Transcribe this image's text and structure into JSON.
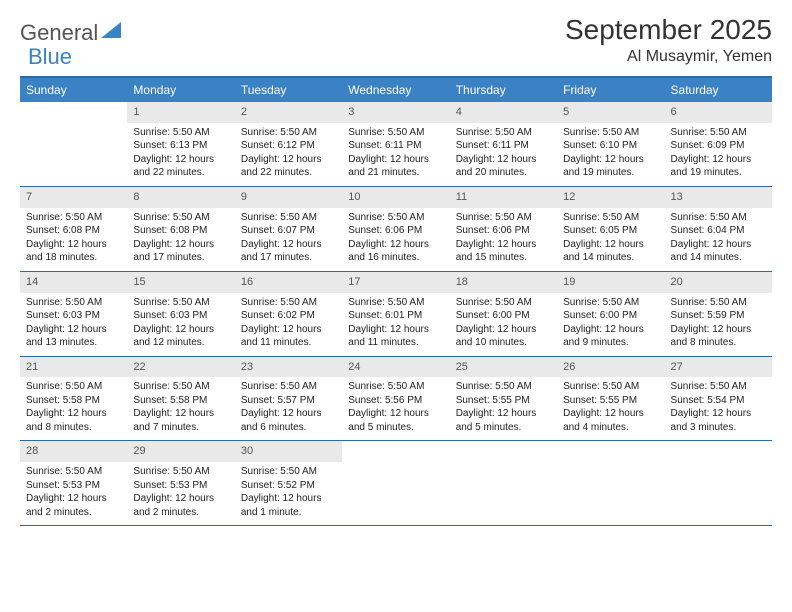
{
  "logo": {
    "general": "General",
    "blue": "Blue"
  },
  "title": "September 2025",
  "location": "Al Musaymir, Yemen",
  "colors": {
    "header_bg": "#3b82c4",
    "border": "#2a6aa8",
    "daynum_bg": "#e9e9e9",
    "text": "#333333"
  },
  "fontsize": {
    "title": 28,
    "subtitle": 16,
    "dayheader": 12,
    "daynum": 11,
    "body": 10
  },
  "day_headers": [
    "Sunday",
    "Monday",
    "Tuesday",
    "Wednesday",
    "Thursday",
    "Friday",
    "Saturday"
  ],
  "weeks": [
    [
      {
        "num": "",
        "sunrise": "",
        "sunset": "",
        "daylight": ""
      },
      {
        "num": "1",
        "sunrise": "Sunrise: 5:50 AM",
        "sunset": "Sunset: 6:13 PM",
        "daylight": "Daylight: 12 hours and 22 minutes."
      },
      {
        "num": "2",
        "sunrise": "Sunrise: 5:50 AM",
        "sunset": "Sunset: 6:12 PM",
        "daylight": "Daylight: 12 hours and 22 minutes."
      },
      {
        "num": "3",
        "sunrise": "Sunrise: 5:50 AM",
        "sunset": "Sunset: 6:11 PM",
        "daylight": "Daylight: 12 hours and 21 minutes."
      },
      {
        "num": "4",
        "sunrise": "Sunrise: 5:50 AM",
        "sunset": "Sunset: 6:11 PM",
        "daylight": "Daylight: 12 hours and 20 minutes."
      },
      {
        "num": "5",
        "sunrise": "Sunrise: 5:50 AM",
        "sunset": "Sunset: 6:10 PM",
        "daylight": "Daylight: 12 hours and 19 minutes."
      },
      {
        "num": "6",
        "sunrise": "Sunrise: 5:50 AM",
        "sunset": "Sunset: 6:09 PM",
        "daylight": "Daylight: 12 hours and 19 minutes."
      }
    ],
    [
      {
        "num": "7",
        "sunrise": "Sunrise: 5:50 AM",
        "sunset": "Sunset: 6:08 PM",
        "daylight": "Daylight: 12 hours and 18 minutes."
      },
      {
        "num": "8",
        "sunrise": "Sunrise: 5:50 AM",
        "sunset": "Sunset: 6:08 PM",
        "daylight": "Daylight: 12 hours and 17 minutes."
      },
      {
        "num": "9",
        "sunrise": "Sunrise: 5:50 AM",
        "sunset": "Sunset: 6:07 PM",
        "daylight": "Daylight: 12 hours and 17 minutes."
      },
      {
        "num": "10",
        "sunrise": "Sunrise: 5:50 AM",
        "sunset": "Sunset: 6:06 PM",
        "daylight": "Daylight: 12 hours and 16 minutes."
      },
      {
        "num": "11",
        "sunrise": "Sunrise: 5:50 AM",
        "sunset": "Sunset: 6:06 PM",
        "daylight": "Daylight: 12 hours and 15 minutes."
      },
      {
        "num": "12",
        "sunrise": "Sunrise: 5:50 AM",
        "sunset": "Sunset: 6:05 PM",
        "daylight": "Daylight: 12 hours and 14 minutes."
      },
      {
        "num": "13",
        "sunrise": "Sunrise: 5:50 AM",
        "sunset": "Sunset: 6:04 PM",
        "daylight": "Daylight: 12 hours and 14 minutes."
      }
    ],
    [
      {
        "num": "14",
        "sunrise": "Sunrise: 5:50 AM",
        "sunset": "Sunset: 6:03 PM",
        "daylight": "Daylight: 12 hours and 13 minutes."
      },
      {
        "num": "15",
        "sunrise": "Sunrise: 5:50 AM",
        "sunset": "Sunset: 6:03 PM",
        "daylight": "Daylight: 12 hours and 12 minutes."
      },
      {
        "num": "16",
        "sunrise": "Sunrise: 5:50 AM",
        "sunset": "Sunset: 6:02 PM",
        "daylight": "Daylight: 12 hours and 11 minutes."
      },
      {
        "num": "17",
        "sunrise": "Sunrise: 5:50 AM",
        "sunset": "Sunset: 6:01 PM",
        "daylight": "Daylight: 12 hours and 11 minutes."
      },
      {
        "num": "18",
        "sunrise": "Sunrise: 5:50 AM",
        "sunset": "Sunset: 6:00 PM",
        "daylight": "Daylight: 12 hours and 10 minutes."
      },
      {
        "num": "19",
        "sunrise": "Sunrise: 5:50 AM",
        "sunset": "Sunset: 6:00 PM",
        "daylight": "Daylight: 12 hours and 9 minutes."
      },
      {
        "num": "20",
        "sunrise": "Sunrise: 5:50 AM",
        "sunset": "Sunset: 5:59 PM",
        "daylight": "Daylight: 12 hours and 8 minutes."
      }
    ],
    [
      {
        "num": "21",
        "sunrise": "Sunrise: 5:50 AM",
        "sunset": "Sunset: 5:58 PM",
        "daylight": "Daylight: 12 hours and 8 minutes."
      },
      {
        "num": "22",
        "sunrise": "Sunrise: 5:50 AM",
        "sunset": "Sunset: 5:58 PM",
        "daylight": "Daylight: 12 hours and 7 minutes."
      },
      {
        "num": "23",
        "sunrise": "Sunrise: 5:50 AM",
        "sunset": "Sunset: 5:57 PM",
        "daylight": "Daylight: 12 hours and 6 minutes."
      },
      {
        "num": "24",
        "sunrise": "Sunrise: 5:50 AM",
        "sunset": "Sunset: 5:56 PM",
        "daylight": "Daylight: 12 hours and 5 minutes."
      },
      {
        "num": "25",
        "sunrise": "Sunrise: 5:50 AM",
        "sunset": "Sunset: 5:55 PM",
        "daylight": "Daylight: 12 hours and 5 minutes."
      },
      {
        "num": "26",
        "sunrise": "Sunrise: 5:50 AM",
        "sunset": "Sunset: 5:55 PM",
        "daylight": "Daylight: 12 hours and 4 minutes."
      },
      {
        "num": "27",
        "sunrise": "Sunrise: 5:50 AM",
        "sunset": "Sunset: 5:54 PM",
        "daylight": "Daylight: 12 hours and 3 minutes."
      }
    ],
    [
      {
        "num": "28",
        "sunrise": "Sunrise: 5:50 AM",
        "sunset": "Sunset: 5:53 PM",
        "daylight": "Daylight: 12 hours and 2 minutes."
      },
      {
        "num": "29",
        "sunrise": "Sunrise: 5:50 AM",
        "sunset": "Sunset: 5:53 PM",
        "daylight": "Daylight: 12 hours and 2 minutes."
      },
      {
        "num": "30",
        "sunrise": "Sunrise: 5:50 AM",
        "sunset": "Sunset: 5:52 PM",
        "daylight": "Daylight: 12 hours and 1 minute."
      },
      {
        "num": "",
        "sunrise": "",
        "sunset": "",
        "daylight": ""
      },
      {
        "num": "",
        "sunrise": "",
        "sunset": "",
        "daylight": ""
      },
      {
        "num": "",
        "sunrise": "",
        "sunset": "",
        "daylight": ""
      },
      {
        "num": "",
        "sunrise": "",
        "sunset": "",
        "daylight": ""
      }
    ]
  ]
}
